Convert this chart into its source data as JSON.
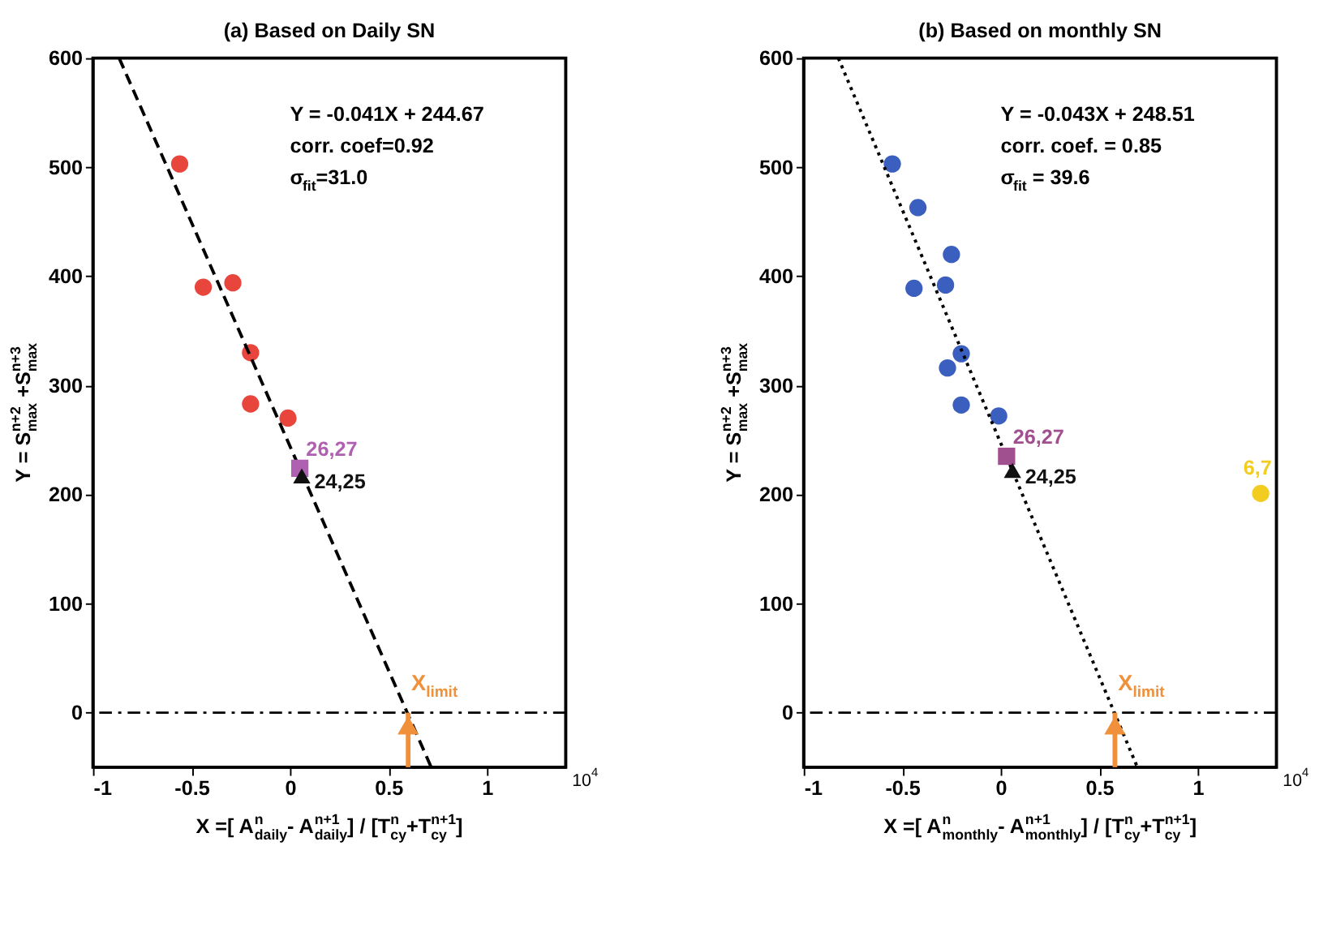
{
  "chart_data": [
    {
      "type": "scatter",
      "title": "(a) Based on Daily SN",
      "xlabel": "X =[ A$^{n}$$_{daily}$- A$^{n+1}$$_{daily}$] / [T$^{n}$$_{cy}$+T$^{n+1}$$_{cy}$]",
      "ylabel": "Y = S$^{n+2}$$_{max}$ +S$^{n+3}$$_{max}$",
      "xlim": [
        -1,
        1.4
      ],
      "xticks": [
        -1,
        -0.5,
        0,
        0.5,
        1
      ],
      "ylim": [
        -50,
        600
      ],
      "yticks": [
        0,
        100,
        200,
        300,
        400,
        500,
        600
      ],
      "grid": false,
      "legend": false,
      "annotations": [
        "Y = -0.041X + 244.67",
        "corr. coef=0.92",
        "σ$_{fit}$=31.0",
        "10$^{4}$",
        {
          "text": "X$_{limit}$",
          "x": 0.6,
          "y": 0
        }
      ],
      "ref_lines": [
        {
          "axis": "y",
          "value": 0,
          "line_style": "dashed",
          "color": "#000000"
        }
      ],
      "series": [
        {
          "type": "scatter",
          "marker": "circle",
          "color": "#e8453c",
          "x": [
            -0.56,
            -0.44,
            -0.29,
            -0.2,
            -0.2,
            -0.01
          ],
          "values": [
            503,
            390,
            394,
            330,
            283,
            270
          ]
        },
        {
          "type": "line",
          "line_style": "dashed",
          "marker": "none",
          "color": "#000000",
          "x": [
            -0.867,
            0.717
          ],
          "values": [
            600,
            -50
          ]
        },
        {
          "type": "scatter",
          "name": "26,27",
          "marker": "square",
          "color": "#b060b0",
          "x": [
            0.05
          ],
          "values": [
            224
          ]
        },
        {
          "type": "scatter",
          "name": "24,25",
          "marker": "triangle",
          "color": "#111111",
          "x": [
            0.06
          ],
          "values": [
            217
          ]
        }
      ]
    },
    {
      "type": "scatter",
      "title": "(b) Based on monthly SN",
      "xlabel": "X =[ A$^{n}$$_{monthly}$- A$^{n+1}$$_{monthly}$] / [T$^{n}$$_{cy}$+T$^{n+1}$$_{cy}$]",
      "ylabel": "Y = S$^{n+2}$$_{max}$ +S$^{n+3}$$_{max}$",
      "xlim": [
        -1,
        1.4
      ],
      "xticks": [
        -1,
        -0.5,
        0,
        0.5,
        1
      ],
      "ylim": [
        -50,
        600
      ],
      "yticks": [
        0,
        100,
        200,
        300,
        400,
        500,
        600
      ],
      "grid": false,
      "legend": false,
      "annotations": [
        "Y = -0.043X + 248.51",
        "corr. coef. = 0.85",
        "σ$_{fit}$ = 39.6",
        "10$^{4}$",
        {
          "text": "X$_{limit}$",
          "x": 0.58,
          "y": 0
        }
      ],
      "ref_lines": [
        {
          "axis": "y",
          "value": 0,
          "line_style": "dashed",
          "color": "#000000"
        }
      ],
      "series": [
        {
          "type": "scatter",
          "marker": "circle",
          "color": "#3a5fbf",
          "x": [
            -0.55,
            -0.42,
            -0.25,
            -0.44,
            -0.28,
            -0.2,
            -0.27,
            -0.2,
            -0.01
          ],
          "values": [
            503,
            463,
            420,
            389,
            392,
            329,
            316,
            282,
            272
          ]
        },
        {
          "type": "line",
          "line_style": "dotted",
          "marker": "none",
          "color": "#000000",
          "x": [
            -0.824,
            0.694
          ],
          "values": [
            600,
            -50
          ]
        },
        {
          "type": "scatter",
          "name": "26,27",
          "marker": "square",
          "color": "#a0508f",
          "x": [
            0.03
          ],
          "values": [
            235
          ]
        },
        {
          "type": "scatter",
          "name": "24,25",
          "marker": "triangle",
          "color": "#111111",
          "x": [
            0.06
          ],
          "values": [
            222
          ]
        },
        {
          "type": "scatter",
          "name": "6,7",
          "marker": "circle",
          "color": "#f2cc1f",
          "x": [
            1.32
          ],
          "values": [
            201
          ]
        }
      ]
    }
  ]
}
